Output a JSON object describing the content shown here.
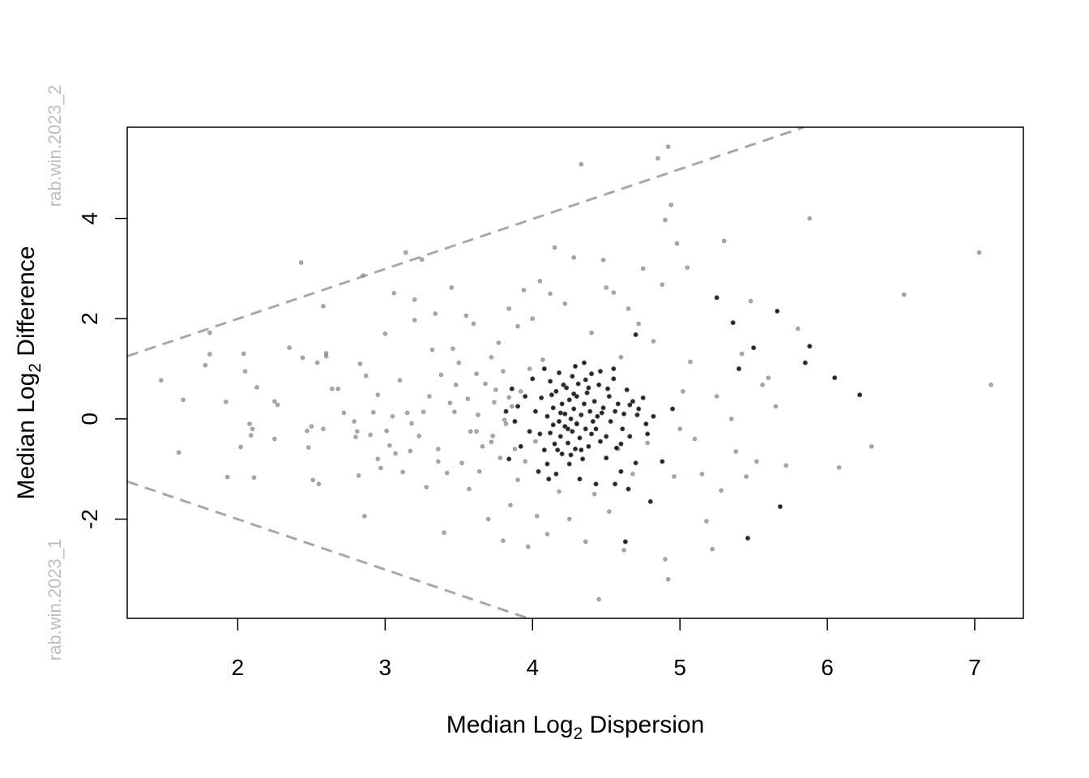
{
  "chart_data": {
    "type": "scatter",
    "title": "",
    "xlabel": {
      "prefix": "Median  Log",
      "sub": "2",
      "suffix": "  Dispersion"
    },
    "ylabel": {
      "prefix": "Median Log",
      "sub": "2",
      "suffix": "  Difference"
    },
    "group_labels": {
      "upper": "rab.win.2023_2",
      "lower": "rab.win.2023_1"
    },
    "xlim": [
      1.25,
      7.33
    ],
    "ylim": [
      -3.98,
      5.82
    ],
    "x_ticks": [
      2,
      3,
      4,
      5,
      6,
      7
    ],
    "x_tick_labels": [
      "2",
      "3",
      "4",
      "5",
      "6",
      "7"
    ],
    "y_ticks": [
      -2,
      0,
      2,
      4
    ],
    "y_tick_labels": [
      "-2",
      "0",
      "2",
      "4"
    ],
    "grid": false,
    "colors": {
      "grey_point": "#8c8c8c",
      "black_point": "#000000",
      "boundary": "#a8a8a8",
      "group_label": "#bdbdbd"
    },
    "boundary_lines": [
      {
        "name": "upper",
        "x": [
          1.25,
          5.84
        ],
        "y": [
          1.25,
          5.82
        ],
        "style": "dashed"
      },
      {
        "name": "lower",
        "x": [
          1.25,
          3.97
        ],
        "y": [
          -1.25,
          -3.98
        ],
        "style": "dashed"
      }
    ],
    "series": [
      {
        "style": "grey",
        "points": [
          [
            1.48,
            0.77
          ],
          [
            1.63,
            0.38
          ],
          [
            1.6,
            -0.67
          ],
          [
            1.78,
            1.07
          ],
          [
            1.81,
            1.29
          ],
          [
            1.81,
            1.72
          ],
          [
            1.92,
            0.34
          ],
          [
            1.93,
            -1.16
          ],
          [
            2.02,
            -0.56
          ],
          [
            2.04,
            1.3
          ],
          [
            2.05,
            0.95
          ],
          [
            2.08,
            -0.1
          ],
          [
            2.09,
            -0.33
          ],
          [
            2.1,
            -0.2
          ],
          [
            2.11,
            -1.17
          ],
          [
            2.13,
            0.63
          ],
          [
            2.25,
            0.35
          ],
          [
            2.27,
            0.28
          ],
          [
            2.25,
            -0.4
          ],
          [
            2.35,
            1.42
          ],
          [
            2.43,
            3.12
          ],
          [
            2.44,
            1.22
          ],
          [
            2.47,
            -0.24
          ],
          [
            2.48,
            -0.57
          ],
          [
            2.5,
            -0.15
          ],
          [
            2.51,
            -1.22
          ],
          [
            2.54,
            1.12
          ],
          [
            2.55,
            -1.3
          ],
          [
            2.58,
            -0.2
          ],
          [
            2.58,
            2.25
          ],
          [
            2.6,
            1.31
          ],
          [
            2.6,
            1.25
          ],
          [
            2.64,
            0.6
          ],
          [
            2.68,
            0.6
          ],
          [
            2.72,
            0.12
          ],
          [
            2.79,
            -0.05
          ],
          [
            2.8,
            -0.36
          ],
          [
            2.81,
            -0.25
          ],
          [
            2.82,
            -1.13
          ],
          [
            2.83,
            1.1
          ],
          [
            2.85,
            2.86
          ],
          [
            2.86,
            -1.94
          ],
          [
            2.87,
            0.86
          ],
          [
            2.9,
            -0.32
          ],
          [
            2.92,
            0.13
          ],
          [
            2.95,
            -0.8
          ],
          [
            2.95,
            0.48
          ],
          [
            2.97,
            -0.98
          ],
          [
            3.0,
            1.7
          ],
          [
            3.01,
            -0.24
          ],
          [
            3.03,
            -0.53
          ],
          [
            3.05,
            0.05
          ],
          [
            3.06,
            2.51
          ],
          [
            3.07,
            -0.69
          ],
          [
            3.1,
            0.77
          ],
          [
            3.12,
            -1.06
          ],
          [
            3.14,
            3.32
          ],
          [
            3.15,
            0.12
          ],
          [
            3.17,
            -0.64
          ],
          [
            3.2,
            1.97
          ],
          [
            3.2,
            2.38
          ],
          [
            3.23,
            -0.34
          ],
          [
            3.25,
            3.18
          ],
          [
            3.26,
            0.14
          ],
          [
            3.28,
            -1.36
          ],
          [
            3.3,
            0.45
          ],
          [
            3.32,
            1.38
          ],
          [
            3.34,
            2.1
          ],
          [
            3.36,
            -0.6
          ],
          [
            3.38,
            0.88
          ],
          [
            3.4,
            -2.27
          ],
          [
            3.42,
            -1.08
          ],
          [
            3.44,
            0.32
          ],
          [
            3.45,
            2.62
          ],
          [
            3.46,
            1.4
          ],
          [
            3.47,
            0.14
          ],
          [
            3.5,
            1.12
          ],
          [
            3.52,
            -0.88
          ],
          [
            3.55,
            2.06
          ],
          [
            3.56,
            0.4
          ],
          [
            3.57,
            -1.4
          ],
          [
            3.6,
            1.9
          ],
          [
            3.62,
            0.9
          ],
          [
            3.62,
            -0.25
          ],
          [
            3.64,
            -1.05
          ],
          [
            3.66,
            -0.55
          ],
          [
            3.68,
            0.7
          ],
          [
            3.7,
            -2.0
          ],
          [
            3.72,
            1.23
          ],
          [
            3.73,
            -0.34
          ],
          [
            3.75,
            0.58
          ],
          [
            3.77,
            1.52
          ],
          [
            3.78,
            -0.78
          ],
          [
            3.8,
            -2.43
          ],
          [
            3.8,
            0.95
          ],
          [
            3.82,
            -0.1
          ],
          [
            3.84,
            2.2
          ],
          [
            3.85,
            -1.72
          ],
          [
            3.86,
            0.25
          ],
          [
            3.88,
            -0.6
          ],
          [
            3.9,
            1.85
          ],
          [
            3.9,
            -1.22
          ],
          [
            3.92,
            0.55
          ],
          [
            3.94,
            2.57
          ],
          [
            3.95,
            -0.85
          ],
          [
            3.97,
            -2.55
          ],
          [
            3.98,
            1.0
          ],
          [
            4.0,
            2.0
          ],
          [
            4.02,
            -0.45
          ],
          [
            4.03,
            -1.94
          ],
          [
            4.05,
            2.75
          ],
          [
            4.07,
            1.18
          ],
          [
            4.1,
            -2.3
          ],
          [
            4.12,
            2.5
          ],
          [
            4.15,
            3.42
          ],
          [
            4.18,
            -1.45
          ],
          [
            4.22,
            2.3
          ],
          [
            4.25,
            -2.0
          ],
          [
            4.28,
            3.22
          ],
          [
            4.3,
            -0.08
          ],
          [
            4.33,
            5.08
          ],
          [
            4.36,
            -2.45
          ],
          [
            4.4,
            1.72
          ],
          [
            4.42,
            -1.5
          ],
          [
            4.45,
            -3.6
          ],
          [
            4.48,
            3.17
          ],
          [
            4.5,
            2.62
          ],
          [
            4.52,
            -1.85
          ],
          [
            4.55,
            2.52
          ],
          [
            4.58,
            -0.6
          ],
          [
            4.6,
            1.23
          ],
          [
            4.62,
            -2.62
          ],
          [
            4.65,
            2.2
          ],
          [
            4.68,
            -1.1
          ],
          [
            4.72,
            1.9
          ],
          [
            4.75,
            3.0
          ],
          [
            4.78,
            -0.48
          ],
          [
            4.82,
            1.55
          ],
          [
            4.85,
            5.2
          ],
          [
            4.88,
            2.68
          ],
          [
            4.9,
            -2.8
          ],
          [
            4.9,
            3.97
          ],
          [
            4.92,
            5.43
          ],
          [
            4.92,
            -3.2
          ],
          [
            4.94,
            4.27
          ],
          [
            4.96,
            -1.15
          ],
          [
            4.98,
            3.5
          ],
          [
            5.0,
            -0.2
          ],
          [
            5.02,
            0.55
          ],
          [
            5.05,
            3.02
          ],
          [
            5.07,
            1.14
          ],
          [
            5.1,
            -0.4
          ],
          [
            5.15,
            -1.1
          ],
          [
            5.18,
            -2.04
          ],
          [
            5.22,
            -2.6
          ],
          [
            5.25,
            0.45
          ],
          [
            5.28,
            -1.43
          ],
          [
            5.3,
            3.55
          ],
          [
            5.35,
            0.0
          ],
          [
            5.38,
            -0.65
          ],
          [
            5.42,
            1.3
          ],
          [
            5.45,
            -1.15
          ],
          [
            5.48,
            2.35
          ],
          [
            5.52,
            -0.85
          ],
          [
            5.56,
            0.68
          ],
          [
            5.6,
            0.82
          ],
          [
            5.65,
            0.25
          ],
          [
            5.72,
            -0.93
          ],
          [
            5.8,
            1.8
          ],
          [
            5.88,
            4.0
          ],
          [
            6.08,
            -0.97
          ],
          [
            6.3,
            -0.55
          ],
          [
            6.52,
            2.48
          ],
          [
            7.03,
            3.32
          ],
          [
            7.11,
            0.68
          ],
          [
            3.18,
            -0.09
          ],
          [
            3.36,
            -0.85
          ],
          [
            3.48,
            0.68
          ],
          [
            3.58,
            -0.25
          ],
          [
            3.63,
            0.08
          ],
          [
            3.72,
            -0.46
          ],
          [
            3.74,
            0.33
          ],
          [
            3.81,
            -0.02
          ],
          [
            3.84,
            0.43
          ]
        ]
      },
      {
        "style": "black",
        "points": [
          [
            4.02,
            0.15
          ],
          [
            4.05,
            -0.3
          ],
          [
            4.06,
            0.42
          ],
          [
            4.08,
            -0.62
          ],
          [
            4.1,
            0.05
          ],
          [
            4.1,
            -0.9
          ],
          [
            4.12,
            0.75
          ],
          [
            4.12,
            -0.28
          ],
          [
            4.14,
            0.22
          ],
          [
            4.15,
            -0.5
          ],
          [
            4.16,
            0.55
          ],
          [
            4.16,
            -1.1
          ],
          [
            4.18,
            -0.05
          ],
          [
            4.18,
            0.92
          ],
          [
            4.19,
            -0.35
          ],
          [
            4.2,
            0.3
          ],
          [
            4.2,
            -0.7
          ],
          [
            4.22,
            0.1
          ],
          [
            4.22,
            -0.15
          ],
          [
            4.23,
            0.62
          ],
          [
            4.24,
            -0.48
          ],
          [
            4.25,
            0.38
          ],
          [
            4.25,
            -0.9
          ],
          [
            4.26,
            0.0
          ],
          [
            4.27,
            0.85
          ],
          [
            4.27,
            -0.25
          ],
          [
            4.28,
            0.2
          ],
          [
            4.29,
            -0.6
          ],
          [
            4.3,
            0.45
          ],
          [
            4.3,
            -0.1
          ],
          [
            4.31,
            0.7
          ],
          [
            4.32,
            -0.38
          ],
          [
            4.33,
            0.08
          ],
          [
            4.34,
            -0.8
          ],
          [
            4.35,
            0.3
          ],
          [
            4.35,
            1.12
          ],
          [
            4.36,
            -0.2
          ],
          [
            4.37,
            0.52
          ],
          [
            4.38,
            -0.55
          ],
          [
            4.39,
            0.15
          ],
          [
            4.4,
            0.9
          ],
          [
            4.4,
            -0.3
          ],
          [
            4.42,
            0.35
          ],
          [
            4.43,
            -1.3
          ],
          [
            4.44,
            0.05
          ],
          [
            4.45,
            0.68
          ],
          [
            4.46,
            -0.45
          ],
          [
            4.48,
            0.22
          ],
          [
            4.5,
            -0.78
          ],
          [
            4.52,
            0.45
          ],
          [
            4.53,
            -0.05
          ],
          [
            4.55,
            0.8
          ],
          [
            4.57,
            -0.58
          ],
          [
            4.58,
            0.3
          ],
          [
            4.6,
            -1.05
          ],
          [
            4.62,
            0.1
          ],
          [
            4.64,
            0.58
          ],
          [
            4.66,
            -0.35
          ],
          [
            4.68,
            0.35
          ],
          [
            4.7,
            -0.88
          ],
          [
            4.72,
            0.2
          ],
          [
            4.75,
            0.42
          ],
          [
            4.78,
            -0.3
          ],
          [
            4.82,
            0.05
          ],
          [
            3.98,
            -0.25
          ],
          [
            3.95,
            0.45
          ],
          [
            3.92,
            -0.55
          ],
          [
            3.9,
            0.25
          ],
          [
            3.88,
            -0.05
          ],
          [
            3.86,
            0.6
          ],
          [
            3.84,
            -0.8
          ],
          [
            3.82,
            0.15
          ],
          [
            4.0,
            0.8
          ],
          [
            4.04,
            -1.05
          ],
          [
            4.08,
            1.0
          ],
          [
            4.11,
            -1.2
          ],
          [
            4.13,
            0.48
          ],
          [
            4.17,
            -0.62
          ],
          [
            4.21,
            0.68
          ],
          [
            4.26,
            -0.72
          ],
          [
            4.29,
            1.05
          ],
          [
            4.32,
            -1.2
          ],
          [
            4.36,
            0.78
          ],
          [
            4.41,
            -0.05
          ],
          [
            4.46,
            0.95
          ],
          [
            4.5,
            -0.35
          ],
          [
            4.55,
            1.0
          ],
          [
            4.6,
            -0.5
          ],
          [
            4.65,
            -1.4
          ],
          [
            4.7,
            1.68
          ],
          [
            4.88,
            -0.85
          ],
          [
            4.95,
            0.2
          ],
          [
            5.25,
            2.42
          ],
          [
            5.36,
            1.92
          ],
          [
            5.4,
            1.0
          ],
          [
            5.5,
            1.42
          ],
          [
            5.66,
            2.15
          ],
          [
            5.68,
            -1.75
          ],
          [
            5.85,
            1.12
          ],
          [
            5.88,
            1.45
          ],
          [
            6.05,
            0.82
          ],
          [
            6.22,
            0.48
          ],
          [
            5.46,
            -2.38
          ],
          [
            4.8,
            -1.65
          ],
          [
            4.63,
            -2.45
          ],
          [
            4.56,
            -1.3
          ],
          [
            4.14,
            -0.12
          ],
          [
            4.19,
            0.12
          ],
          [
            4.24,
            -0.2
          ],
          [
            4.28,
            0.5
          ],
          [
            4.33,
            -0.62
          ],
          [
            4.38,
            0.62
          ],
          [
            4.43,
            -0.2
          ],
          [
            4.47,
            0.12
          ],
          [
            4.51,
            0.6
          ],
          [
            4.56,
            0.15
          ],
          [
            4.61,
            -0.2
          ],
          [
            4.66,
            0.28
          ],
          [
            4.71,
            0.08
          ],
          [
            4.77,
            -0.1
          ]
        ]
      }
    ]
  }
}
